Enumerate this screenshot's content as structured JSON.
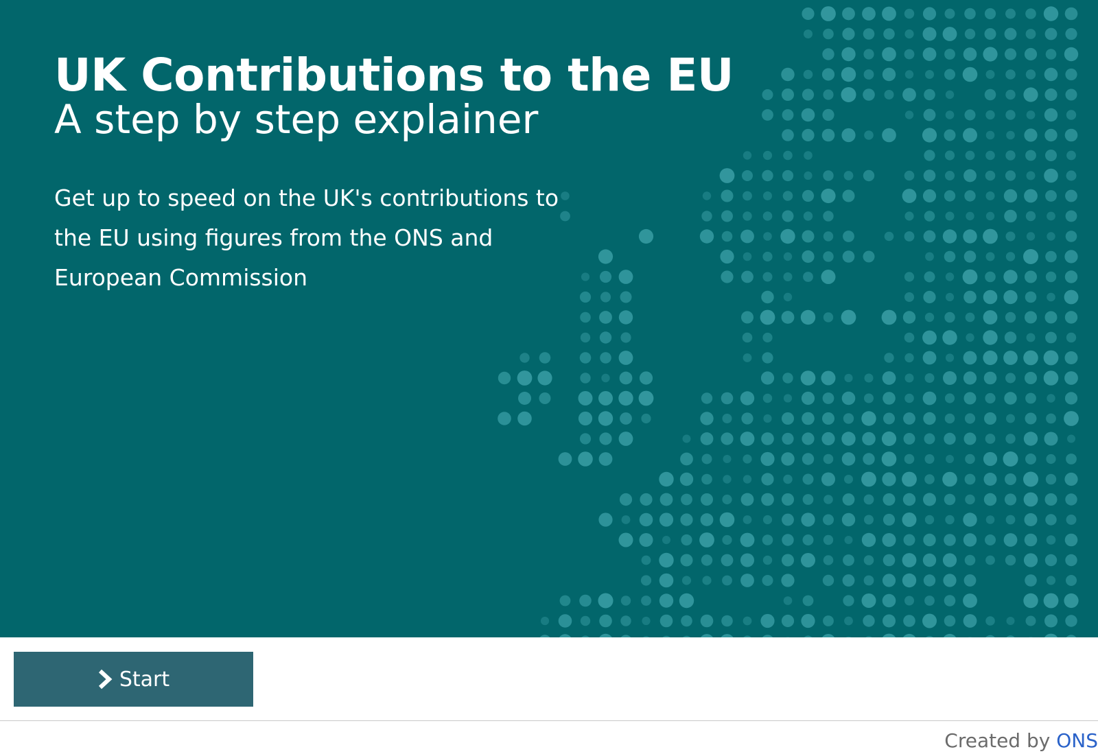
{
  "hero": {
    "title": "UK Contributions to the EU",
    "subtitle": "A step by step explainer",
    "intro": "Get up to speed on the UK's contributions to the EU using figures from the ONS and European Commission",
    "background_color": "#02666b",
    "decoration_icon": "europe-dot-map"
  },
  "controls": {
    "start_label": "Start",
    "start_icon": "chevron-right-icon",
    "button_color": "#2e6673"
  },
  "footer": {
    "credit_prefix": "Created by",
    "credit_link": "ONS",
    "link_color": "#2a62c9"
  }
}
